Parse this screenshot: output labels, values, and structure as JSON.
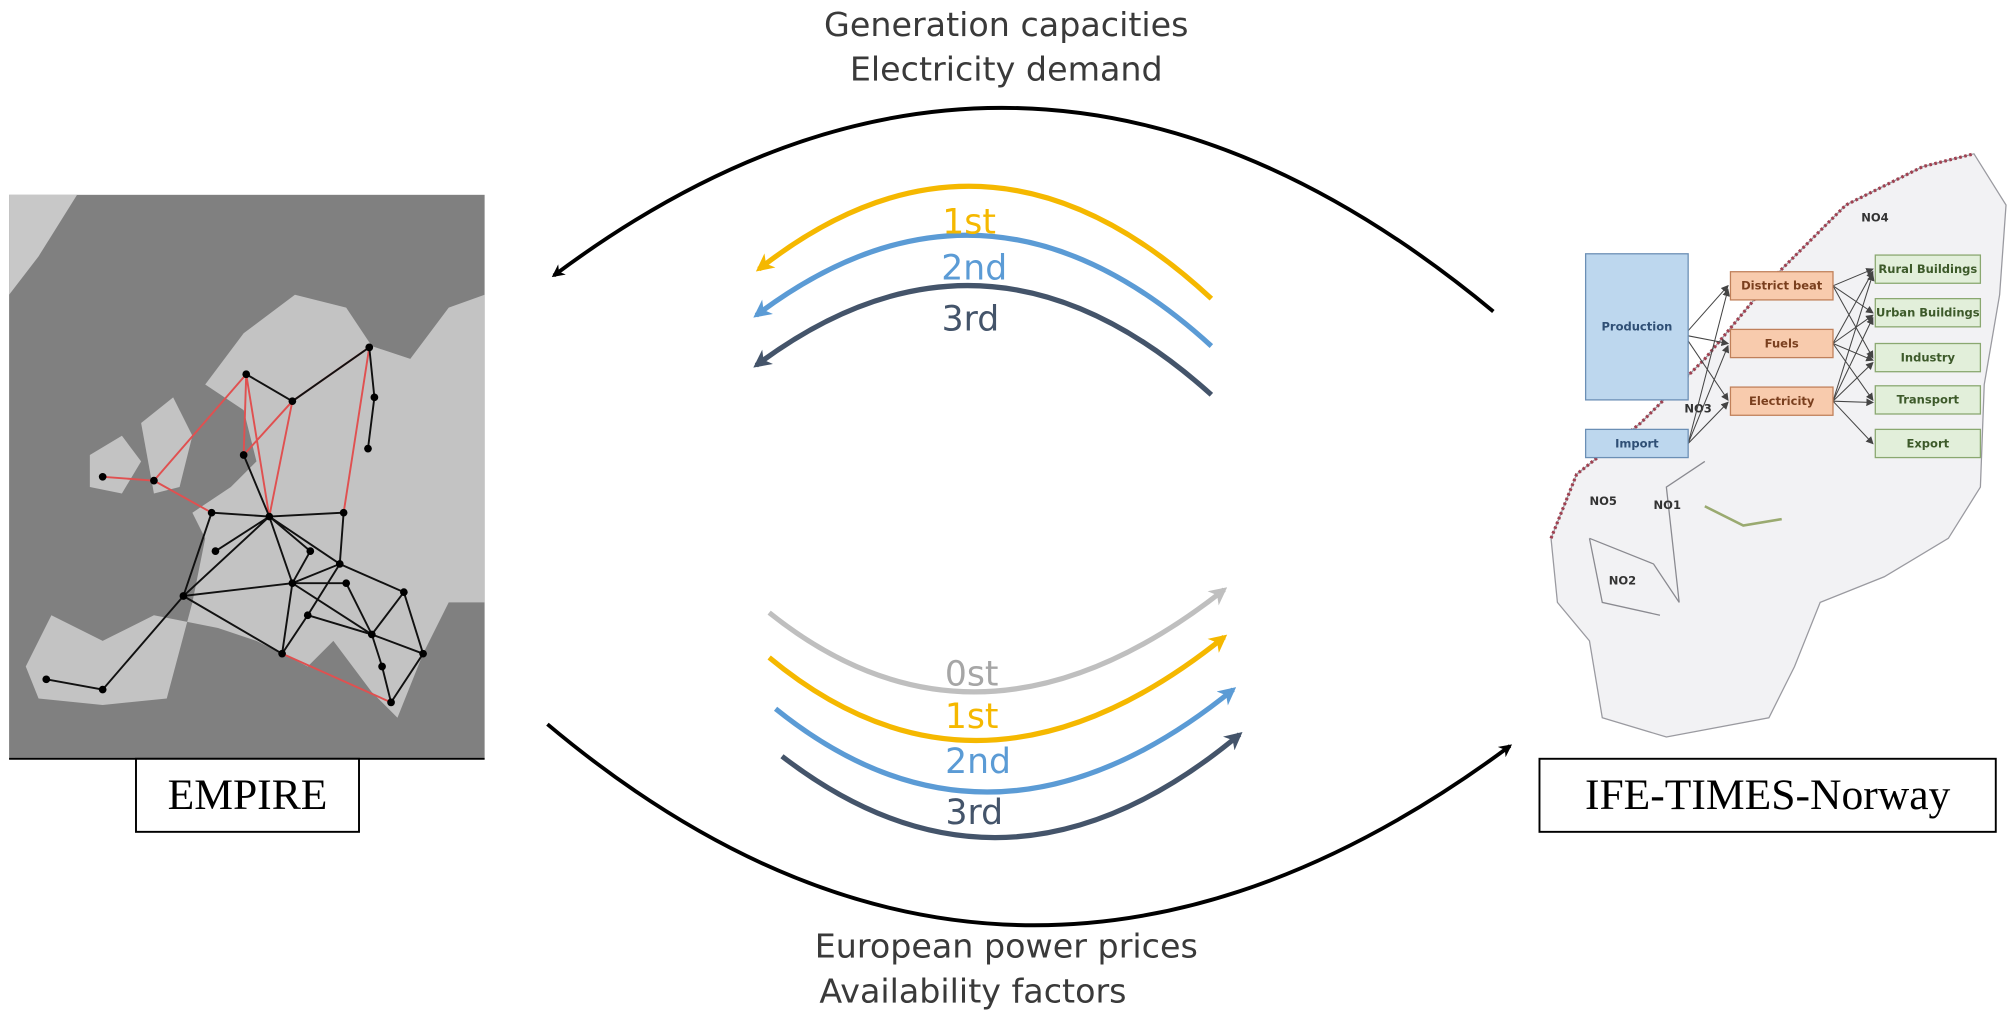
{
  "top_flow": {
    "lines": [
      "Generation capacities",
      "Electricity demand"
    ]
  },
  "bottom_flow": {
    "lines": [
      "European power prices",
      "Availability factors"
    ]
  },
  "top_iterations": [
    "1st",
    "2nd",
    "3rd"
  ],
  "bottom_iterations": [
    "0st",
    "1st",
    "2nd",
    "3rd"
  ],
  "models": {
    "left": "EMPIRE",
    "right": "IFE-TIMES-Norway"
  },
  "norway_diagram": {
    "sources": [
      "Production",
      "Import"
    ],
    "carriers": [
      "District beat",
      "Fuels",
      "Electricity"
    ],
    "sectors": [
      "Rural Buildings",
      "Urban Buildings",
      "Industry",
      "Transport",
      "Export"
    ],
    "regions": [
      "NO4",
      "NO3",
      "NO5",
      "NO1",
      "NO2"
    ]
  }
}
